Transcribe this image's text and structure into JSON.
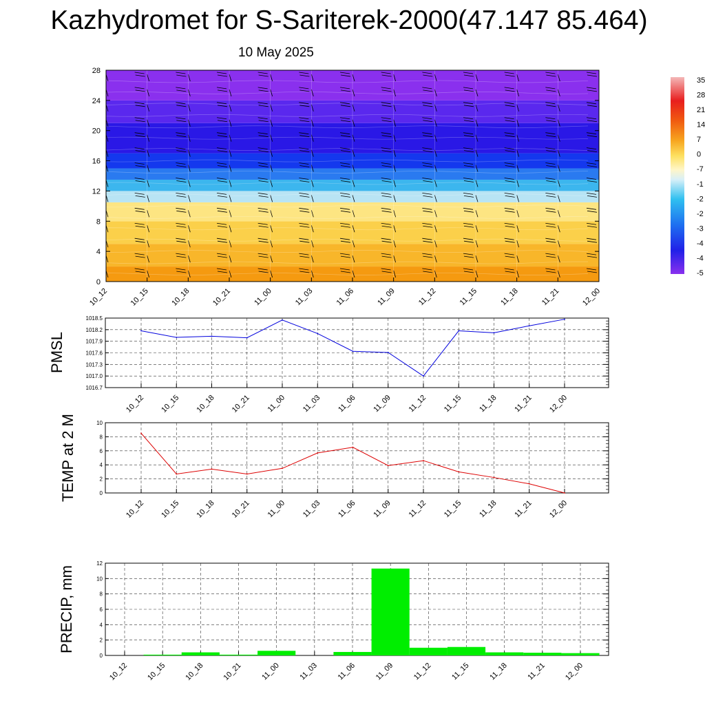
{
  "header": {
    "title": "Kazhydromet for S-Sariterek-2000(47.147 85.464)",
    "subtitle": "10 May 2025"
  },
  "colors": {
    "pmsl_line": "#0000dd",
    "temp_line": "#dd0000",
    "precip_bar": "#00ee00"
  },
  "time_labels": [
    "10_12",
    "10_15",
    "10_18",
    "10_21",
    "11_00",
    "11_03",
    "11_06",
    "11_09",
    "11_12",
    "11_15",
    "11_18",
    "11_21",
    "12_00"
  ],
  "colorbar_labels": [
    "35",
    "28",
    "21",
    "14",
    "7",
    "0",
    "-7",
    "-1",
    "-2",
    "-2",
    "-3",
    "-4",
    "-4",
    "-5"
  ],
  "chart_data": [
    {
      "type": "heatmap",
      "name": "time-height cross section",
      "x": [
        "10_12",
        "10_15",
        "10_18",
        "10_21",
        "11_00",
        "11_03",
        "11_06",
        "11_09",
        "11_12",
        "11_15",
        "11_18",
        "11_21",
        "12_00"
      ],
      "y_ticks": [
        0,
        4,
        8,
        12,
        16,
        20,
        24,
        28
      ],
      "ylim": [
        0,
        28
      ],
      "bands": [
        {
          "y_from": 0,
          "y_to": 2,
          "color": "#f59a10"
        },
        {
          "y_from": 2,
          "y_to": 5,
          "color": "#f8b62a"
        },
        {
          "y_from": 5,
          "y_to": 8,
          "color": "#fbd04a"
        },
        {
          "y_from": 8,
          "y_to": 10.5,
          "color": "#fde582"
        },
        {
          "y_from": 10.5,
          "y_to": 12,
          "color": "#b8e4f4"
        },
        {
          "y_from": 12,
          "y_to": 13.5,
          "color": "#3cb6ee"
        },
        {
          "y_from": 13.5,
          "y_to": 15,
          "color": "#2a7af0"
        },
        {
          "y_from": 15,
          "y_to": 17,
          "color": "#1438ee"
        },
        {
          "y_from": 17,
          "y_to": 21,
          "color": "#2a18e6"
        },
        {
          "y_from": 21,
          "y_to": 24,
          "color": "#5a28ee"
        },
        {
          "y_from": 24,
          "y_to": 28,
          "color": "#8a30ee"
        }
      ]
    },
    {
      "type": "line",
      "name": "PMSL",
      "ylabel": "PMSL",
      "x": [
        "10_12",
        "10_15",
        "10_18",
        "10_21",
        "11_00",
        "11_03",
        "11_06",
        "11_09",
        "11_12",
        "11_15",
        "11_18",
        "11_21",
        "12_00"
      ],
      "values": [
        1018.17,
        1018.0,
        1018.03,
        1017.99,
        1018.45,
        1018.1,
        1017.64,
        1017.61,
        1017.0,
        1018.17,
        1018.12,
        1018.3,
        1018.47
      ],
      "ylim": [
        1016.7,
        1018.5
      ],
      "y_ticks": [
        "1016.7",
        "1017.0",
        "1017.3",
        "1017.6",
        "1017.9",
        "1018.2",
        "1018.5"
      ]
    },
    {
      "type": "line",
      "name": "TEMP at 2 M",
      "ylabel": "TEMP at 2 M",
      "x": [
        "10_12",
        "10_15",
        "10_18",
        "10_21",
        "11_00",
        "11_03",
        "11_06",
        "11_09",
        "11_12",
        "11_15",
        "11_18",
        "11_21",
        "12_00"
      ],
      "values": [
        8.5,
        2.7,
        3.4,
        2.7,
        3.5,
        5.7,
        6.5,
        3.9,
        4.6,
        3.0,
        2.2,
        1.3,
        0.0
      ],
      "ylim": [
        0,
        10
      ],
      "y_ticks": [
        "0",
        "2",
        "4",
        "6",
        "8",
        "10"
      ]
    },
    {
      "type": "bar",
      "name": "PRECIP, mm",
      "ylabel": "PRECIP, mm",
      "x": [
        "10_12",
        "10_15",
        "10_18",
        "10_21",
        "11_00",
        "11_03",
        "11_06",
        "11_09",
        "11_12",
        "11_15",
        "11_18",
        "11_21",
        "12_00"
      ],
      "values": [
        0.0,
        0.1,
        0.4,
        0.1,
        0.6,
        0.0,
        0.45,
        11.3,
        1.0,
        1.1,
        0.4,
        0.35,
        0.3
      ],
      "ylim": [
        0,
        12
      ],
      "y_ticks": [
        "0",
        "2",
        "4",
        "6",
        "8",
        "10",
        "12"
      ]
    }
  ]
}
